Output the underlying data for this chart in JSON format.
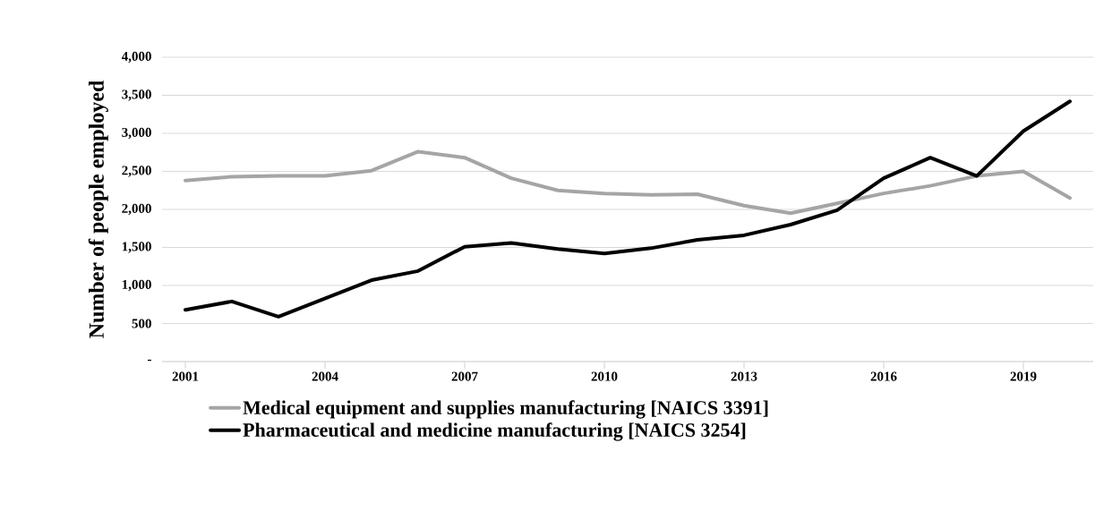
{
  "chart_data": {
    "type": "line",
    "ylabel": "Number of people employed",
    "categories": [
      "2001",
      null,
      null,
      "2004",
      null,
      null,
      "2007",
      null,
      null,
      "2010",
      null,
      null,
      "2013",
      null,
      null,
      "2016",
      null,
      null,
      "2019",
      null
    ],
    "series": [
      {
        "name": "Medical equipment and supplies manufacturing [NAICS 3391]",
        "color": "#a5a5a5",
        "values": [
          2380,
          2430,
          2440,
          2440,
          2510,
          2760,
          2680,
          2410,
          2250,
          2210,
          2190,
          2200,
          2050,
          1950,
          2080,
          2210,
          2310,
          2440,
          2500,
          2150
        ]
      },
      {
        "name": "Pharmaceutical and medicine manufacturing [NAICS 3254]",
        "color": "#000000",
        "values": [
          680,
          790,
          590,
          830,
          1070,
          1190,
          1510,
          1560,
          1480,
          1420,
          1490,
          1600,
          1660,
          1800,
          1990,
          2410,
          2680,
          2440,
          3030,
          3420
        ]
      }
    ],
    "ylim": [
      0,
      4000
    ],
    "yticks": [
      {
        "value": 0,
        "label": "-"
      },
      500,
      {
        "value": 1000,
        "label": "1,000"
      },
      {
        "value": 1500,
        "label": "1,500"
      },
      {
        "value": 2000,
        "label": "2,000"
      },
      {
        "value": 2500,
        "label": "2,500"
      },
      {
        "value": 3000,
        "label": "3,000"
      },
      {
        "value": 3500,
        "label": "3,500"
      },
      {
        "value": 4000,
        "label": "4,000"
      }
    ],
    "grid": "y",
    "legend": "bottom",
    "line_style": "solid"
  }
}
